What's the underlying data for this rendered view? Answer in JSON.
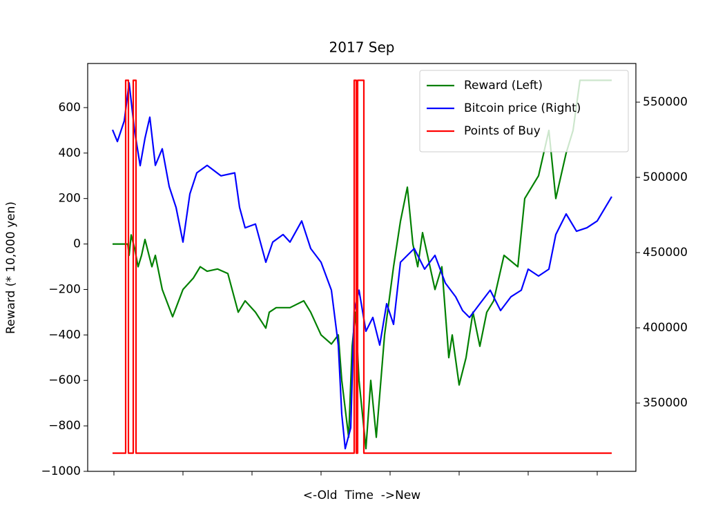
{
  "chart_data": {
    "type": "line",
    "title": "2017 Sep",
    "xlabel": "<-Old  Time  ->New",
    "ylabel": "Reward (* 10,000 yen)",
    "xlim": [
      -38,
      756
    ],
    "xticks": [
      0,
      100,
      200,
      300,
      400,
      500,
      600,
      700
    ],
    "ylim": [
      -1000,
      794
    ],
    "yticks": [
      {
        "value": -1000,
        "label": "−1000"
      },
      {
        "value": -800,
        "label": "−800"
      },
      {
        "value": -600,
        "label": "−600"
      },
      {
        "value": -400,
        "label": "−400"
      },
      {
        "value": -200,
        "label": "−200"
      },
      0,
      200,
      400,
      600
    ],
    "y2lim": [
      304600,
      575700
    ],
    "y2ticks": [
      350000,
      400000,
      450000,
      500000,
      550000
    ],
    "legend": "upper right",
    "series": [
      {
        "name": "Reward (Left)",
        "color": "#008000",
        "x": [
          -2,
          20,
          22,
          25,
          30,
          35,
          40,
          45,
          55,
          60,
          70,
          85,
          100,
          115,
          125,
          135,
          150,
          165,
          180,
          190,
          205,
          220,
          225,
          235,
          255,
          275,
          285,
          300,
          315,
          325,
          330,
          340,
          345,
          350,
          355,
          365,
          372,
          380,
          392,
          405,
          415,
          425,
          433,
          440,
          447,
          465,
          475,
          485,
          490,
          500,
          510,
          520,
          530,
          540,
          550,
          565,
          585,
          595,
          615,
          630,
          635,
          640,
          655,
          665,
          675,
          705,
          721
        ],
        "values": [
          0,
          0,
          -50,
          40,
          -20,
          -100,
          -50,
          20,
          -100,
          -50,
          -200,
          -320,
          -200,
          -150,
          -100,
          -120,
          -110,
          -130,
          -300,
          -250,
          -300,
          -370,
          -300,
          -280,
          -280,
          -250,
          -300,
          -400,
          -440,
          -400,
          -600,
          -850,
          -450,
          -300,
          -600,
          -900,
          -600,
          -850,
          -400,
          -100,
          100,
          250,
          0,
          -100,
          50,
          -200,
          -100,
          -500,
          -400,
          -620,
          -500,
          -300,
          -450,
          -300,
          -250,
          -50,
          -100,
          200,
          300,
          500,
          350,
          200,
          400,
          500,
          720,
          720,
          720
        ]
      },
      {
        "name": "Bitcoin price (Right)",
        "color": "#0000ff",
        "axis": "y2",
        "x": [
          -2,
          5,
          15,
          22,
          30,
          38,
          45,
          52,
          60,
          70,
          80,
          90,
          100,
          110,
          120,
          135,
          155,
          175,
          182,
          190,
          205,
          220,
          230,
          245,
          255,
          272,
          285,
          300,
          315,
          325,
          330,
          335,
          343,
          348,
          355,
          365,
          375,
          385,
          395,
          405,
          415,
          425,
          435,
          450,
          465,
          480,
          495,
          505,
          515,
          530,
          545,
          560,
          575,
          590,
          600,
          615,
          630,
          640,
          655,
          670,
          685,
          700,
          721
        ],
        "values": [
          531600,
          523800,
          537600,
          562800,
          530700,
          507800,
          526000,
          540000,
          508000,
          519000,
          494000,
          480000,
          457000,
          489000,
          503000,
          508000,
          501000,
          503000,
          480000,
          466500,
          469000,
          443600,
          457000,
          462000,
          457000,
          471000,
          452700,
          443600,
          425000,
          388500,
          342600,
          319700,
          333500,
          411500,
          425000,
          397700,
          406900,
          388500,
          416000,
          402300,
          443600,
          448200,
          452700,
          439000,
          448200,
          429800,
          420600,
          411500,
          406900,
          416000,
          425000,
          411500,
          420600,
          425000,
          439000,
          434400,
          439000,
          462000,
          475700,
          464200,
          466500,
          471000,
          487200
        ]
      },
      {
        "name": "Points of Buy",
        "color": "#ff0000",
        "x": [
          -2,
          17,
          17,
          21,
          21,
          28,
          28,
          32,
          32,
          348,
          348,
          351,
          351,
          353,
          353,
          362,
          362,
          721
        ],
        "values": [
          -920,
          -920,
          720,
          720,
          -920,
          -920,
          720,
          720,
          -920,
          -920,
          720,
          720,
          -920,
          -920,
          720,
          720,
          -920,
          -920
        ]
      }
    ]
  }
}
